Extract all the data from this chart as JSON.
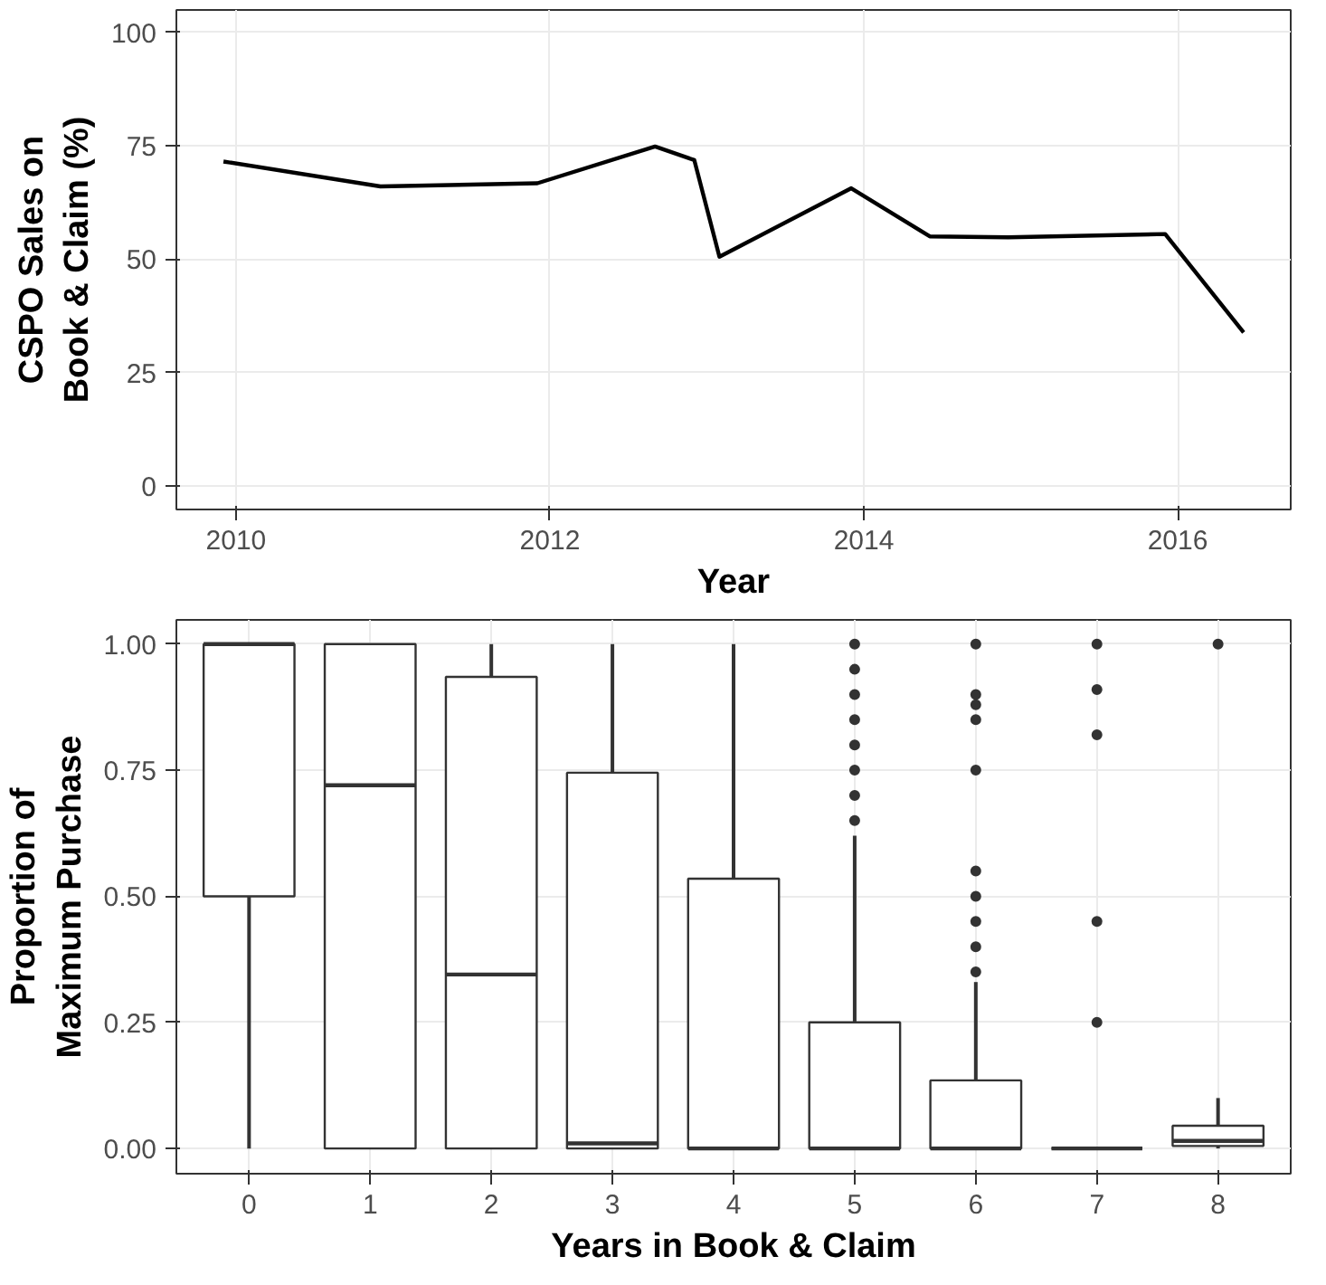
{
  "chart_data": [
    {
      "type": "line",
      "xlabel": "Year",
      "ylabel": "CSPO Sales on\nBook & Claim (%)",
      "x": [
        2009.92,
        2010.92,
        2011.92,
        2012.67,
        2012.92,
        2013.08,
        2013.92,
        2014.42,
        2014.92,
        2015.92,
        2016.42
      ],
      "series": [
        {
          "color": "#000000",
          "values": [
            71.5,
            66,
            66.7,
            74.8,
            71.8,
            50.5,
            65.6,
            55,
            54.8,
            55.5,
            33.8
          ]
        }
      ],
      "xlim": [
        2009.62,
        2016.72
      ],
      "xticks": [
        2010,
        2012,
        2014,
        2016
      ],
      "ylim": [
        -5.2,
        104.9
      ],
      "yticks": [
        0,
        25,
        50,
        75,
        100
      ],
      "grid": true,
      "line_style": "solid",
      "marker": "none"
    },
    {
      "type": "box",
      "xlabel": "Years in Book & Claim",
      "ylabel": "Proportion of\nMaximum Purchase",
      "categories": [
        "0",
        "1",
        "2",
        "3",
        "4",
        "5",
        "6",
        "7",
        "8"
      ],
      "color": "#333333",
      "boxes": [
        {
          "low": 0,
          "q1": 0.5,
          "median": 1.0,
          "q3": 1.0,
          "high": 1.0
        },
        {
          "low": 0,
          "q1": 0,
          "median": 0.72,
          "q3": 1.0,
          "high": 1.0
        },
        {
          "low": 0,
          "q1": 0,
          "median": 0.345,
          "q3": 0.935,
          "high": 1.0
        },
        {
          "low": 0,
          "q1": 0,
          "median": 0.01,
          "q3": 0.745,
          "high": 1.0
        },
        {
          "low": 0,
          "q1": 0,
          "median": 0,
          "q3": 0.535,
          "high": 1.0
        },
        {
          "low": 0,
          "q1": 0,
          "median": 0,
          "q3": 0.25,
          "high": 0.62,
          "outliers": [
            0.65,
            0.7,
            0.75,
            0.8,
            0.85,
            0.9,
            0.95,
            1.0
          ]
        },
        {
          "low": 0,
          "q1": 0,
          "median": 0,
          "q3": 0.135,
          "high": 0.33,
          "outliers": [
            0.35,
            0.4,
            0.45,
            0.5,
            0.55,
            0.75,
            0.85,
            0.88,
            0.9,
            1.0
          ]
        },
        {
          "low": 0,
          "q1": 0,
          "median": 0,
          "q3": 0,
          "high": 0,
          "outliers": [
            0.25,
            0.45,
            0.82,
            0.91,
            1.0
          ]
        },
        {
          "low": 0,
          "q1": 0.005,
          "median": 0.015,
          "q3": 0.045,
          "high": 0.1,
          "outliers": [
            1.0
          ]
        }
      ],
      "ylim": [
        -0.05,
        1.048
      ],
      "yticks": [
        {
          "value": 0,
          "label": "0.00"
        },
        {
          "value": 0.25,
          "label": "0.25"
        },
        {
          "value": 0.5,
          "label": "0.50"
        },
        {
          "value": 0.75,
          "label": "0.75"
        },
        {
          "value": 1,
          "label": "1.00"
        }
      ],
      "grid": true
    }
  ]
}
